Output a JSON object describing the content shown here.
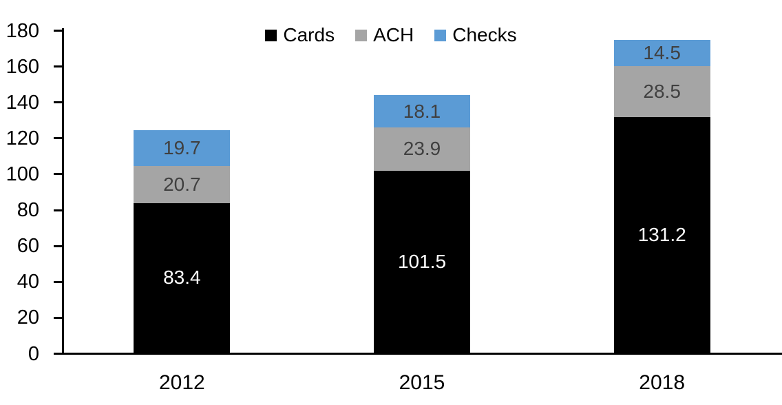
{
  "chart_data": {
    "type": "bar",
    "stacked": true,
    "title": "",
    "xlabel": "",
    "ylabel": "",
    "categories": [
      "2012",
      "2015",
      "2018"
    ],
    "series": [
      {
        "name": "Cards",
        "color": "#000000",
        "label_color": "#ffffff",
        "values": [
          83.4,
          101.5,
          131.2
        ]
      },
      {
        "name": "ACH",
        "color": "#a5a5a5",
        "label_color": "#404040",
        "values": [
          20.7,
          23.9,
          28.5
        ]
      },
      {
        "name": "Checks",
        "color": "#5b9bd5",
        "label_color": "#404040",
        "values": [
          19.7,
          18.1,
          14.5
        ]
      }
    ],
    "totals": [
      123.8,
      143.5,
      174.2
    ],
    "ylim": [
      0,
      180
    ],
    "ytick_step": 20,
    "yticks": [
      0,
      20,
      40,
      60,
      80,
      100,
      120,
      140,
      160,
      180
    ],
    "grid": false,
    "data_labels": true,
    "legend_position": "top-center",
    "axis_color": "#000000",
    "background": "#ffffff"
  }
}
